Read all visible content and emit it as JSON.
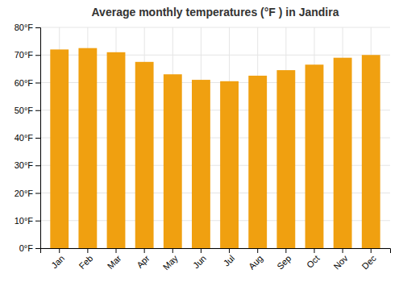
{
  "chart_data": {
    "type": "bar",
    "title": "Average monthly temperatures (°F ) in Jandira",
    "categories": [
      "Jan",
      "Feb",
      "Mar",
      "Apr",
      "May",
      "Jun",
      "Jul",
      "Aug",
      "Sep",
      "Oct",
      "Nov",
      "Dec"
    ],
    "values": [
      72,
      72.5,
      71,
      67.5,
      63,
      61,
      60.5,
      62.5,
      64.5,
      66.5,
      69,
      70
    ],
    "color": "#F0A010",
    "ylim": [
      0,
      80
    ],
    "yticks": [
      {
        "value": 0,
        "label": "0°F"
      },
      {
        "value": 10,
        "label": "10°F"
      },
      {
        "value": 20,
        "label": "20°F"
      },
      {
        "value": 30,
        "label": "30°F"
      },
      {
        "value": 40,
        "label": "40°F"
      },
      {
        "value": 50,
        "label": "50°F"
      },
      {
        "value": 60,
        "label": "60°F"
      },
      {
        "value": 70,
        "label": "70°F"
      },
      {
        "value": 80,
        "label": "80°F"
      }
    ],
    "grid": true
  }
}
